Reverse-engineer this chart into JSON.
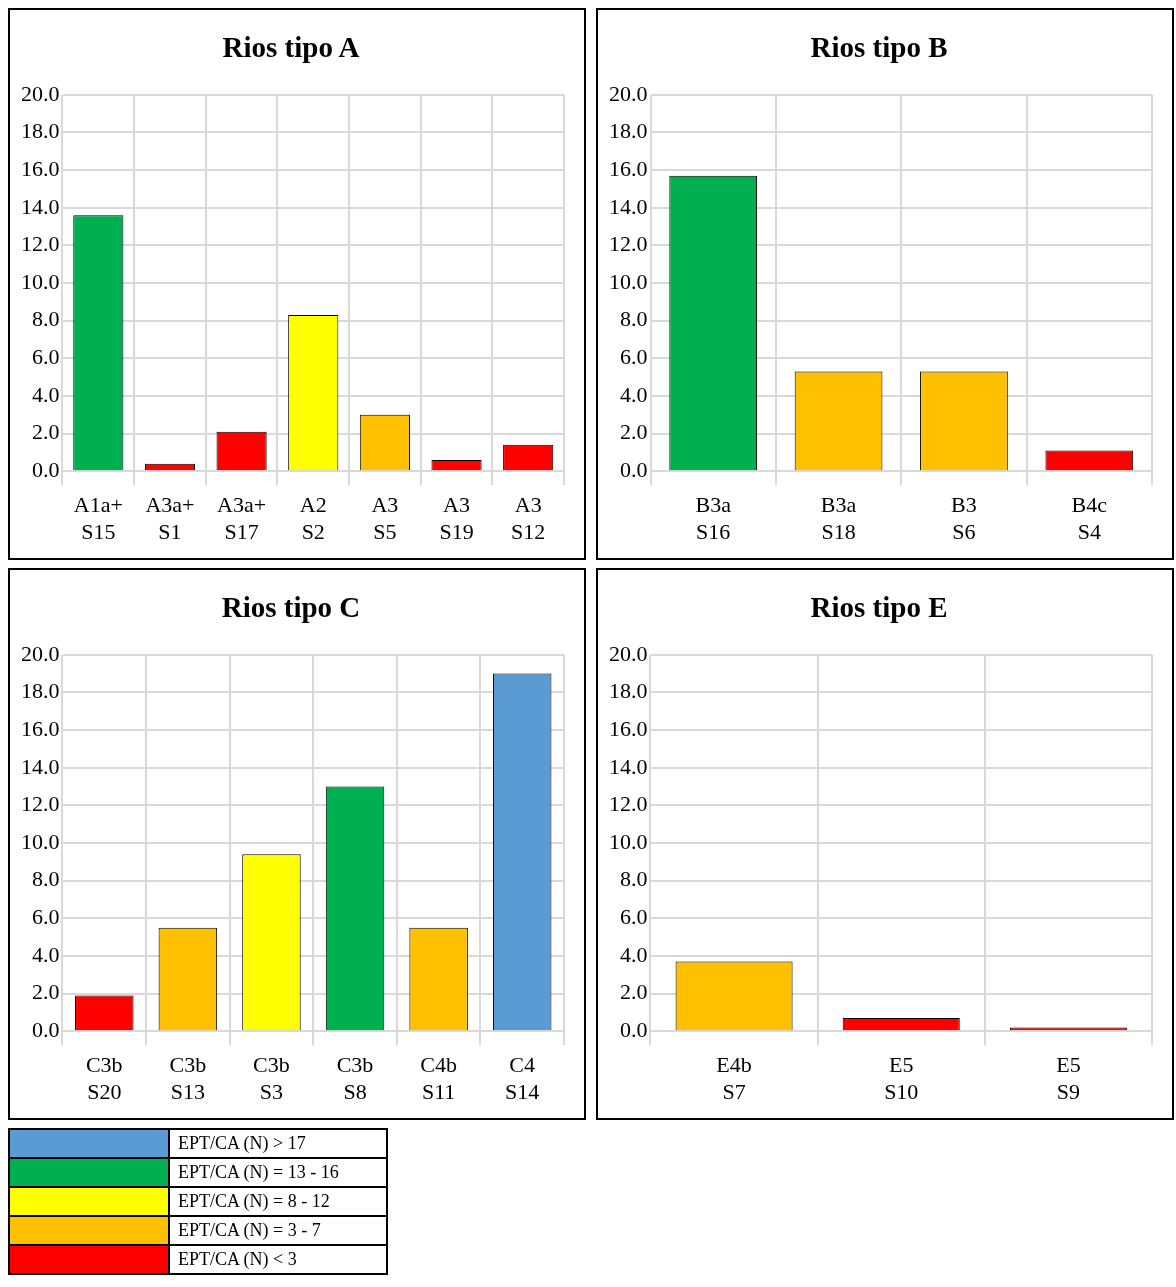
{
  "chart_data": [
    {
      "type": "bar",
      "title": "Rios tipo A",
      "categories": [
        "A1a+\nS15",
        "A3a+\nS1",
        "A3a+\nS17",
        "A2\nS2",
        "A3\nS5",
        "A3\nS19",
        "A3\nS12"
      ],
      "values": [
        13.6,
        0.4,
        2.1,
        8.3,
        3.0,
        0.6,
        1.4
      ],
      "colors": [
        "#00b050",
        "#ff0000",
        "#ff0000",
        "#ffff00",
        "#ffc000",
        "#ff0000",
        "#ff0000"
      ],
      "ylim": [
        0,
        20
      ],
      "yticks": [
        {
          "value": 0,
          "label": "0.0"
        },
        {
          "value": 2,
          "label": "2.0"
        },
        {
          "value": 4,
          "label": "4.0"
        },
        {
          "value": 6,
          "label": "6.0"
        },
        {
          "value": 8,
          "label": "8.0"
        },
        {
          "value": 10,
          "label": "10.0"
        },
        {
          "value": 12,
          "label": "12.0"
        },
        {
          "value": 14,
          "label": "14.0"
        },
        {
          "value": 16,
          "label": "16.0"
        },
        {
          "value": 18,
          "label": "18.0"
        },
        {
          "value": 20,
          "label": "20.0"
        }
      ],
      "grid": true
    },
    {
      "type": "bar",
      "title": "Rios tipo B",
      "categories": [
        "B3a\nS16",
        "B3a\nS18",
        "B3\nS6",
        "B4c\nS4"
      ],
      "values": [
        15.7,
        5.3,
        5.3,
        1.1
      ],
      "colors": [
        "#00b050",
        "#ffc000",
        "#ffc000",
        "#ff0000"
      ],
      "ylim": [
        0,
        20
      ],
      "yticks": [
        {
          "value": 0,
          "label": "0.0"
        },
        {
          "value": 2,
          "label": "2.0"
        },
        {
          "value": 4,
          "label": "4.0"
        },
        {
          "value": 6,
          "label": "6.0"
        },
        {
          "value": 8,
          "label": "8.0"
        },
        {
          "value": 10,
          "label": "10.0"
        },
        {
          "value": 12,
          "label": "12.0"
        },
        {
          "value": 14,
          "label": "14.0"
        },
        {
          "value": 16,
          "label": "16.0"
        },
        {
          "value": 18,
          "label": "18.0"
        },
        {
          "value": 20,
          "label": "20.0"
        }
      ],
      "grid": true
    },
    {
      "type": "bar",
      "title": "Rios tipo C",
      "categories": [
        "C3b\nS20",
        "C3b\nS13",
        "C3b\nS3",
        "C3b\nS8",
        "C4b\nS11",
        "C4\nS14"
      ],
      "values": [
        1.9,
        5.5,
        9.4,
        13.0,
        5.5,
        19.0
      ],
      "colors": [
        "#ff0000",
        "#ffc000",
        "#ffff00",
        "#00b050",
        "#ffc000",
        "#5b9bd5"
      ],
      "ylim": [
        0,
        20
      ],
      "yticks": [
        {
          "value": 0,
          "label": "0.0"
        },
        {
          "value": 2,
          "label": "2.0"
        },
        {
          "value": 4,
          "label": "4.0"
        },
        {
          "value": 6,
          "label": "6.0"
        },
        {
          "value": 8,
          "label": "8.0"
        },
        {
          "value": 10,
          "label": "10.0"
        },
        {
          "value": 12,
          "label": "12.0"
        },
        {
          "value": 14,
          "label": "14.0"
        },
        {
          "value": 16,
          "label": "16.0"
        },
        {
          "value": 18,
          "label": "18.0"
        },
        {
          "value": 20,
          "label": "20.0"
        }
      ],
      "grid": true
    },
    {
      "type": "bar",
      "title": "Rios tipo E",
      "categories": [
        "E4b\nS7",
        "E5\nS10",
        "E5\nS9"
      ],
      "values": [
        3.7,
        0.7,
        0.2
      ],
      "colors": [
        "#ffc000",
        "#ff0000",
        "#ff0000"
      ],
      "ylim": [
        0,
        20
      ],
      "yticks": [
        {
          "value": 0,
          "label": "0.0"
        },
        {
          "value": 2,
          "label": "2.0"
        },
        {
          "value": 4,
          "label": "4.0"
        },
        {
          "value": 6,
          "label": "6.0"
        },
        {
          "value": 8,
          "label": "8.0"
        },
        {
          "value": 10,
          "label": "10.0"
        },
        {
          "value": 12,
          "label": "12.0"
        },
        {
          "value": 14,
          "label": "14.0"
        },
        {
          "value": 16,
          "label": "16.0"
        },
        {
          "value": 18,
          "label": "18.0"
        },
        {
          "value": 20,
          "label": "20.0"
        }
      ],
      "grid": true
    },
    {
      "type": "other",
      "categories": [
        "EPT/CA (N) > 17",
        "EPT/CA (N) = 13 - 16",
        "EPT/CA (N) = 8 - 12",
        "EPT/CA (N) = 3 - 7",
        "EPT/CA (N) < 3"
      ],
      "colors": [
        "#5b9bd5",
        "#00b050",
        "#ffff00",
        "#ffc000",
        "#ff0000"
      ]
    }
  ]
}
